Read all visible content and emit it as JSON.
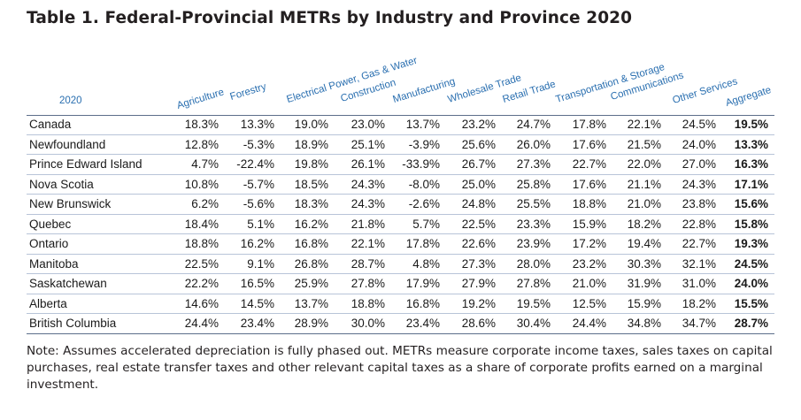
{
  "title": "Table 1. Federal-Provincial METRs by Industry and Province 2020",
  "year_label": "2020",
  "columns": [
    "Agriculture",
    "Forestry",
    "Electrical Power, Gas & Water",
    "Construction",
    "Manufacturing",
    "Wholesale Trade",
    "Retail Trade",
    "Transportation & Storage",
    "Communications",
    "Other Services",
    "Aggregate"
  ],
  "rows": [
    {
      "province": "Canada",
      "values": [
        "18.3%",
        "13.3%",
        "19.0%",
        "23.0%",
        "13.7%",
        "23.2%",
        "24.7%",
        "17.8%",
        "22.1%",
        "24.5%",
        "19.5%"
      ]
    },
    {
      "province": "Newfoundland",
      "values": [
        "12.8%",
        "-5.3%",
        "18.9%",
        "25.1%",
        "-3.9%",
        "25.6%",
        "26.0%",
        "17.6%",
        "21.5%",
        "24.0%",
        "13.3%"
      ]
    },
    {
      "province": "Prince Edward Island",
      "values": [
        "4.7%",
        "-22.4%",
        "19.8%",
        "26.1%",
        "-33.9%",
        "26.7%",
        "27.3%",
        "22.7%",
        "22.0%",
        "27.0%",
        "16.3%"
      ]
    },
    {
      "province": "Nova Scotia",
      "values": [
        "10.8%",
        "-5.7%",
        "18.5%",
        "24.3%",
        "-8.0%",
        "25.0%",
        "25.8%",
        "17.6%",
        "21.1%",
        "24.3%",
        "17.1%"
      ]
    },
    {
      "province": "New Brunswick",
      "values": [
        "6.2%",
        "-5.6%",
        "18.3%",
        "24.3%",
        "-2.6%",
        "24.8%",
        "25.5%",
        "18.8%",
        "21.0%",
        "23.8%",
        "15.6%"
      ]
    },
    {
      "province": "Quebec",
      "values": [
        "18.4%",
        "5.1%",
        "16.2%",
        "21.8%",
        "5.7%",
        "22.5%",
        "23.3%",
        "15.9%",
        "18.2%",
        "22.8%",
        "15.8%"
      ]
    },
    {
      "province": "Ontario",
      "values": [
        "18.8%",
        "16.2%",
        "16.8%",
        "22.1%",
        "17.8%",
        "22.6%",
        "23.9%",
        "17.2%",
        "19.4%",
        "22.7%",
        "19.3%"
      ]
    },
    {
      "province": "Manitoba",
      "values": [
        "22.5%",
        "9.1%",
        "26.8%",
        "28.7%",
        "4.8%",
        "27.3%",
        "28.0%",
        "23.2%",
        "30.3%",
        "32.1%",
        "24.5%"
      ]
    },
    {
      "province": "Saskatchewan",
      "values": [
        "22.2%",
        "16.5%",
        "25.9%",
        "27.8%",
        "17.9%",
        "27.9%",
        "27.8%",
        "21.0%",
        "31.9%",
        "31.0%",
        "24.0%"
      ]
    },
    {
      "province": "Alberta",
      "values": [
        "14.6%",
        "14.5%",
        "13.7%",
        "18.8%",
        "16.8%",
        "19.2%",
        "19.5%",
        "12.5%",
        "15.9%",
        "18.2%",
        "15.5%"
      ]
    },
    {
      "province": "British Columbia",
      "values": [
        "24.4%",
        "23.4%",
        "28.9%",
        "30.0%",
        "23.4%",
        "28.6%",
        "30.4%",
        "24.4%",
        "34.8%",
        "34.7%",
        "28.7%"
      ]
    }
  ],
  "note": "Note: Assumes accelerated depreciation is fully phased out. METRs measure corporate income taxes, sales taxes on capital purchases, real estate transfer taxes and other relevant capital taxes as a share of corporate profits earned on a marginal investment."
}
